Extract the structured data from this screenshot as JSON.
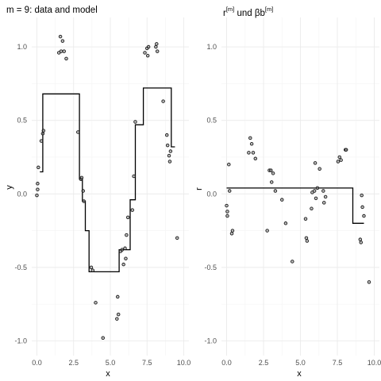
{
  "colors": {
    "point_fill": "#8c8c8c",
    "point_stroke": "#1a1a1a",
    "line": "#000000",
    "grid_major": "#ebebeb",
    "grid_minor": "#f4f4f4"
  },
  "chart_data": [
    {
      "type": "scatter",
      "title": "m = 9: data and model",
      "xlabel": "x",
      "ylabel": "y",
      "xlim": [
        -0.35,
        10.35
      ],
      "ylim": [
        -1.1,
        1.2
      ],
      "xticks": [
        0.0,
        2.5,
        5.0,
        7.5,
        10.0
      ],
      "xtick_labels": [
        "0.0",
        "2.5",
        "5.0",
        "7.5",
        "10.0"
      ],
      "yticks": [
        -1.0,
        -0.5,
        0.0,
        0.5,
        1.0
      ],
      "ytick_labels": [
        "-1.0",
        "-0.5",
        "0.0",
        "0.5",
        "1.0"
      ],
      "grid": true,
      "points": {
        "x": [
          0.0,
          0.05,
          0.05,
          0.1,
          0.3,
          0.4,
          0.45,
          1.5,
          1.6,
          1.65,
          1.75,
          1.85,
          2.0,
          2.8,
          3.0,
          3.05,
          3.15,
          3.2,
          3.7,
          3.8,
          4.0,
          4.5,
          5.45,
          5.5,
          5.55,
          5.7,
          5.8,
          5.9,
          6.0,
          6.05,
          6.1,
          6.2,
          6.5,
          6.6,
          6.7,
          7.35,
          7.5,
          7.55,
          7.6,
          8.1,
          8.15,
          8.2,
          8.6,
          8.85,
          8.9,
          9.0,
          9.05,
          9.1,
          9.55
        ],
        "y": [
          -0.01,
          0.07,
          0.03,
          0.18,
          0.36,
          0.41,
          0.43,
          0.96,
          1.07,
          0.97,
          1.04,
          0.97,
          0.92,
          0.42,
          0.1,
          0.11,
          0.02,
          -0.05,
          -0.5,
          -0.52,
          -0.74,
          -0.98,
          -0.85,
          -0.7,
          -0.82,
          -0.39,
          -0.38,
          -0.48,
          -0.37,
          -0.44,
          -0.28,
          -0.16,
          -0.11,
          0.12,
          0.49,
          0.96,
          0.99,
          0.94,
          1.0,
          1.0,
          1.02,
          0.97,
          0.63,
          0.4,
          0.33,
          0.26,
          0.22,
          0.29,
          -0.3
        ]
      },
      "step_model": {
        "x": [
          0.2,
          0.4,
          0.4,
          2.9,
          2.9,
          3.1,
          3.1,
          3.3,
          3.3,
          3.55,
          3.55,
          5.6,
          5.6,
          6.35,
          6.35,
          6.7,
          6.7,
          7.25,
          7.25,
          9.15,
          9.15,
          9.4
        ],
        "y": [
          0.15,
          0.15,
          0.68,
          0.68,
          0.1,
          0.1,
          -0.05,
          -0.05,
          -0.25,
          -0.25,
          -0.53,
          -0.53,
          -0.38,
          -0.38,
          -0.04,
          -0.04,
          0.47,
          0.47,
          0.72,
          0.72,
          0.32,
          0.32
        ]
      }
    },
    {
      "type": "scatter",
      "title_main": "r",
      "title_sup1": "[m]",
      "title_mid": " und βb",
      "title_sup2": "[m]",
      "xlabel": "x",
      "ylabel": "r",
      "xlim": [
        -0.35,
        10.35
      ],
      "ylim": [
        -1.1,
        1.2
      ],
      "xticks": [
        0.0,
        2.5,
        5.0,
        7.5,
        10.0
      ],
      "xtick_labels": [
        "0.0",
        "2.5",
        "5.0",
        "7.5",
        "10.0"
      ],
      "yticks": [
        -1.0,
        -0.5,
        0.0,
        0.5,
        1.0
      ],
      "ytick_labels": [
        "-1.0",
        "-0.5",
        "0.0",
        "0.5",
        "1.0"
      ],
      "grid": true,
      "points": {
        "x": [
          0.0,
          0.05,
          0.05,
          0.15,
          0.2,
          0.35,
          0.4,
          1.5,
          1.6,
          1.7,
          1.8,
          1.95,
          2.75,
          2.9,
          3.0,
          3.05,
          3.15,
          3.3,
          3.75,
          4.0,
          4.45,
          5.35,
          5.4,
          5.45,
          5.75,
          5.8,
          5.95,
          6.0,
          6.05,
          6.15,
          6.3,
          6.55,
          6.6,
          6.7,
          7.55,
          7.65,
          7.75,
          8.05,
          8.1,
          9.05,
          9.1,
          9.15,
          9.2,
          9.3,
          9.65
        ],
        "y": [
          -0.08,
          -0.12,
          -0.15,
          0.2,
          0.02,
          -0.27,
          -0.25,
          0.28,
          0.38,
          0.34,
          0.28,
          0.24,
          -0.25,
          0.16,
          0.16,
          0.08,
          0.14,
          0.02,
          -0.04,
          -0.2,
          -0.46,
          -0.17,
          -0.3,
          -0.32,
          -0.1,
          0.01,
          0.02,
          0.21,
          -0.03,
          0.04,
          0.17,
          0.02,
          -0.06,
          -0.02,
          0.22,
          0.25,
          0.23,
          0.3,
          0.3,
          -0.31,
          -0.33,
          -0.01,
          -0.09,
          -0.15,
          -0.6
        ]
      },
      "step_model": {
        "x": [
          0.0,
          8.55,
          8.55,
          9.3
        ],
        "y": [
          0.04,
          0.04,
          -0.2,
          -0.2
        ]
      }
    }
  ]
}
